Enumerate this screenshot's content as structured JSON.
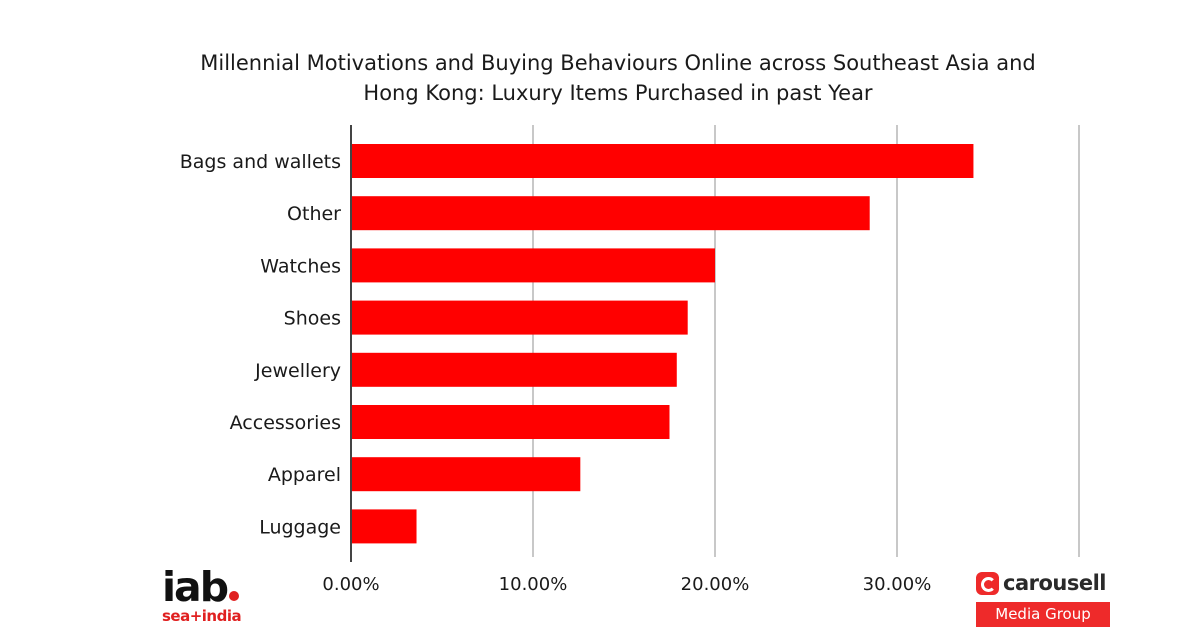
{
  "chart_data": {
    "type": "bar",
    "orientation": "horizontal",
    "title": "Millennial Motivations and Buying Behaviours Online across Southeast Asia and Hong Kong: Luxury Items Purchased in past Year",
    "title_lines": [
      "Millennial Motivations and Buying Behaviours Online across Southeast Asia and",
      "Hong Kong: Luxury Items Purchased in past Year"
    ],
    "categories": [
      "Bags and wallets",
      "Other",
      "Watches",
      "Shoes",
      "Jewellery",
      "Accessories",
      "Apparel",
      "Luggage"
    ],
    "values": [
      34.2,
      28.5,
      20.0,
      18.5,
      17.9,
      17.5,
      12.6,
      3.6
    ],
    "xlim": [
      0,
      40
    ],
    "x_ticks": [
      0,
      10,
      20,
      30
    ],
    "x_tick_labels": [
      "0.00%",
      "10.00%",
      "20.00%",
      "30.00%"
    ],
    "xlabel": "",
    "ylabel": "",
    "grid": "vertical",
    "legend": "none",
    "bar_color": "#ff0000"
  },
  "logos": {
    "iab_main": "iab",
    "iab_sub": "sea+india",
    "carousell_name": "carousell",
    "carousell_sub": "Media Group"
  },
  "colors": {
    "accent": "#ff0000",
    "logo_red": "#ee2a2a",
    "gridline": "#c8c8c8",
    "axis": "#444444"
  }
}
